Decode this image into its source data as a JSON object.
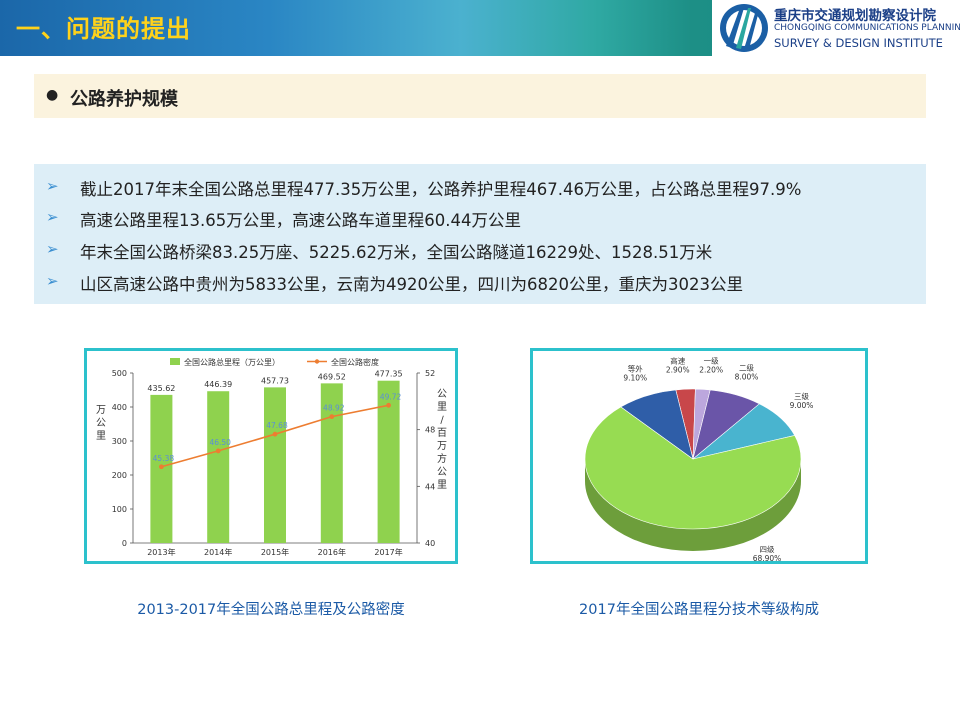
{
  "header": {
    "title": "一、问题的提出",
    "logo": {
      "name_cn": "重庆市交通规划勘察设计院",
      "name_en_line1": "CHONGQING COMMUNICATIONS PLANNING",
      "name_en_line2": "SURVEY & DESIGN INSTITUTE"
    }
  },
  "section": {
    "title": "公路养护规模"
  },
  "bullets": [
    "截止2017年末全国公路总里程477.35万公里，公路养护里程467.46万公里，占公路总里程97.9%",
    "高速公路里程13.65万公里，高速公路车道里程60.44万公里",
    "年末全国公路桥梁83.25万座、5225.62万米，全国公路隧道16229处、1528.51万米",
    "山区高速公路中贵州为5833公里，云南为4920公里，四川为6820公里，重庆为3023公里"
  ],
  "captions": {
    "left": "2013-2017年全国公路总里程及公路密度",
    "right": "2017年全国公路里程分技术等级构成"
  },
  "chart_data": [
    {
      "type": "bar",
      "categories": [
        "2013年",
        "2014年",
        "2015年",
        "2016年",
        "2017年"
      ],
      "series": [
        {
          "name": "全国公路总里程（万公里）",
          "type": "bar",
          "axis": "left",
          "values": [
            435.62,
            446.39,
            457.73,
            469.52,
            477.35
          ],
          "color": "#8fd24e"
        },
        {
          "name": "全国公路密度",
          "type": "line",
          "axis": "right",
          "values": [
            45.38,
            46.5,
            47.68,
            48.92,
            49.72
          ],
          "color": "#ed7d31"
        }
      ],
      "bar_labels": [
        "435.62",
        "446.39",
        "457.73",
        "469.52",
        "477.35"
      ],
      "line_labels": [
        "45.38",
        "46.50",
        "47.68",
        "48.92",
        "49.72"
      ],
      "ylabel_left": "万公里",
      "ylabel_right": "公里/百万方公里",
      "ylim_left": [
        0,
        500
      ],
      "yticks_left": [
        "0",
        "100",
        "200",
        "300",
        "400",
        "500"
      ],
      "ylim_right": [
        40,
        52
      ],
      "yticks_right": [
        "40",
        "44",
        "48",
        "52"
      ],
      "grid": false,
      "legend_position": "top"
    },
    {
      "type": "pie",
      "labels": [
        "高速",
        "一级",
        "二级",
        "三级",
        "四级",
        "等外"
      ],
      "values": [
        2.9,
        2.2,
        8.0,
        9.0,
        68.9,
        9.1
      ],
      "value_labels": [
        "2.90%",
        "2.20%",
        "8.00%",
        "9.00%",
        "68.90%",
        "9.10%"
      ],
      "colors": [
        "#c8474a",
        "#bca7dd",
        "#6a55a8",
        "#49b4cf",
        "#97dc52",
        "#2f5ea8"
      ]
    }
  ]
}
